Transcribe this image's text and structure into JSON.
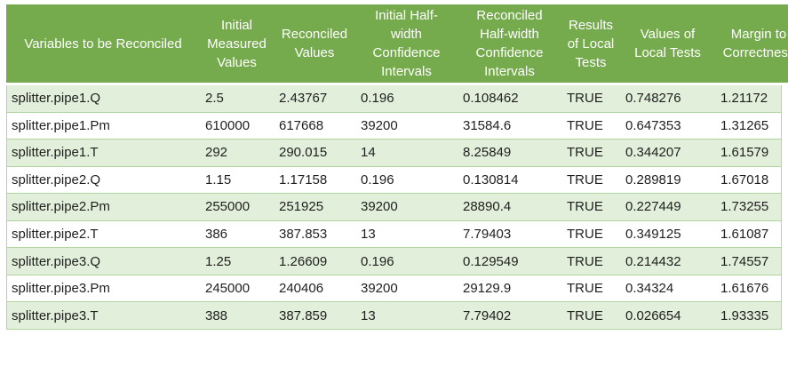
{
  "colors": {
    "header_bg": "#75AB4D",
    "band_bg": "#E2EFDA",
    "grid": "#B2D49E",
    "header_text": "#FFFFFF",
    "body_text": "#1F1F1F"
  },
  "chart_data": {
    "type": "table",
    "columns": [
      "Variables to be Reconciled",
      "Initial Measured Values",
      "Reconciled Values",
      "Initial Half-width Confidence Intervals",
      "Reconciled Half-width Confidence Intervals",
      "Results of Local Tests",
      "Values of Local Tests",
      "Margin to Correctness"
    ],
    "rows": [
      [
        "splitter.pipe1.Q",
        "2.5",
        "2.43767",
        "0.196",
        "0.108462",
        "TRUE",
        "0.748276",
        "1.21172"
      ],
      [
        "splitter.pipe1.Pm",
        "610000",
        "617668",
        "39200",
        "31584.6",
        "TRUE",
        "0.647353",
        "1.31265"
      ],
      [
        "splitter.pipe1.T",
        "292",
        "290.015",
        "14",
        "8.25849",
        "TRUE",
        "0.344207",
        "1.61579"
      ],
      [
        "splitter.pipe2.Q",
        "1.15",
        "1.17158",
        "0.196",
        "0.130814",
        "TRUE",
        "0.289819",
        "1.67018"
      ],
      [
        "splitter.pipe2.Pm",
        "255000",
        "251925",
        "39200",
        "28890.4",
        "TRUE",
        "0.227449",
        "1.73255"
      ],
      [
        "splitter.pipe2.T",
        "386",
        "387.853",
        "13",
        "7.79403",
        "TRUE",
        "0.349125",
        "1.61087"
      ],
      [
        "splitter.pipe3.Q",
        "1.25",
        "1.26609",
        "0.196",
        "0.129549",
        "TRUE",
        "0.214432",
        "1.74557"
      ],
      [
        "splitter.pipe3.Pm",
        "245000",
        "240406",
        "39200",
        "29129.9",
        "TRUE",
        "0.34324",
        "1.61676"
      ],
      [
        "splitter.pipe3.T",
        "388",
        "387.859",
        "13",
        "7.79402",
        "TRUE",
        "0.026654",
        "1.93335"
      ]
    ]
  }
}
